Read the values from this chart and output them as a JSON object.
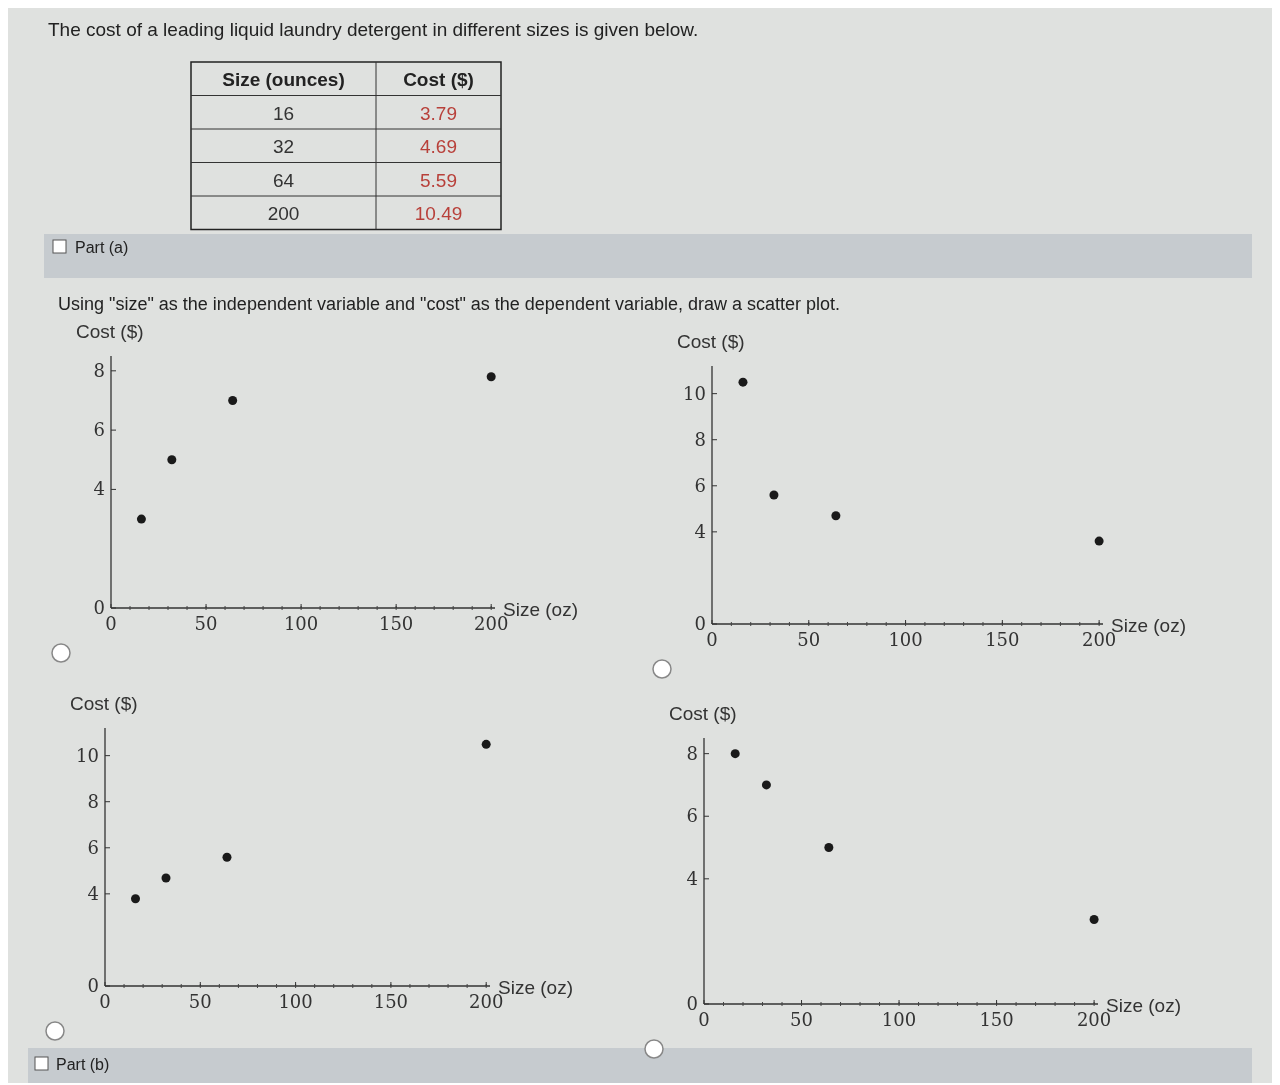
{
  "chart_data": [
    {
      "type": "other",
      "title": "The cost of a leading liquid laundry detergent in different sizes is given below.",
      "xlabel": "Size (ounces)",
      "ylabel": "Cost ($)",
      "categories": [
        "16",
        "32",
        "64",
        "200"
      ],
      "values": [
        3.79,
        4.69,
        5.59,
        10.49
      ],
      "color": "#b8403a",
      "data_labels": true,
      "annotations": [
        "Part (a)",
        "Using \"size\" as the independent variable and \"cost\" as the dependent variable, draw a scatter plot.",
        "Part (b)"
      ]
    },
    {
      "type": "scatter",
      "xlabel": "Size (oz)",
      "ylabel": "Cost ($)",
      "x": [
        16,
        32,
        64,
        200
      ],
      "values": [
        3.0,
        5.0,
        7.0,
        7.8
      ],
      "color": "#1a1a1a",
      "marker": "circle",
      "xlim": [
        0,
        202
      ],
      "xticks": [
        0,
        50,
        100,
        150,
        200
      ],
      "ylim": [
        0,
        8.5
      ],
      "yticks": [
        0,
        4,
        6,
        8
      ]
    },
    {
      "type": "scatter",
      "xlabel": "Size (oz)",
      "ylabel": "Cost ($)",
      "x": [
        16,
        32,
        64,
        200
      ],
      "values": [
        10.5,
        5.6,
        4.7,
        3.6
      ],
      "color": "#1a1a1a",
      "marker": "circle",
      "xlim": [
        0,
        202
      ],
      "xticks": [
        0,
        50,
        100,
        150,
        200
      ],
      "ylim": [
        0,
        11.2
      ],
      "yticks": [
        0,
        4,
        6,
        8,
        10
      ]
    },
    {
      "type": "scatter",
      "xlabel": "Size (oz)",
      "ylabel": "Cost ($)",
      "x": [
        16,
        32,
        64,
        200
      ],
      "values": [
        3.79,
        4.69,
        5.59,
        10.49
      ],
      "color": "#1a1a1a",
      "marker": "circle",
      "xlim": [
        0,
        202
      ],
      "xticks": [
        0,
        50,
        100,
        150,
        200
      ],
      "ylim": [
        0,
        11.2
      ],
      "yticks": [
        0,
        4,
        6,
        8,
        10
      ]
    },
    {
      "type": "scatter",
      "xlabel": "Size (oz)",
      "ylabel": "Cost ($)",
      "x": [
        16,
        32,
        64,
        200
      ],
      "values": [
        8.0,
        7.0,
        5.0,
        2.7
      ],
      "color": "#1a1a1a",
      "marker": "circle",
      "xlim": [
        0,
        202
      ],
      "xticks": [
        0,
        50,
        100,
        150,
        200
      ],
      "ylim": [
        0,
        8.5
      ],
      "yticks": [
        0,
        4,
        6,
        8
      ]
    }
  ]
}
